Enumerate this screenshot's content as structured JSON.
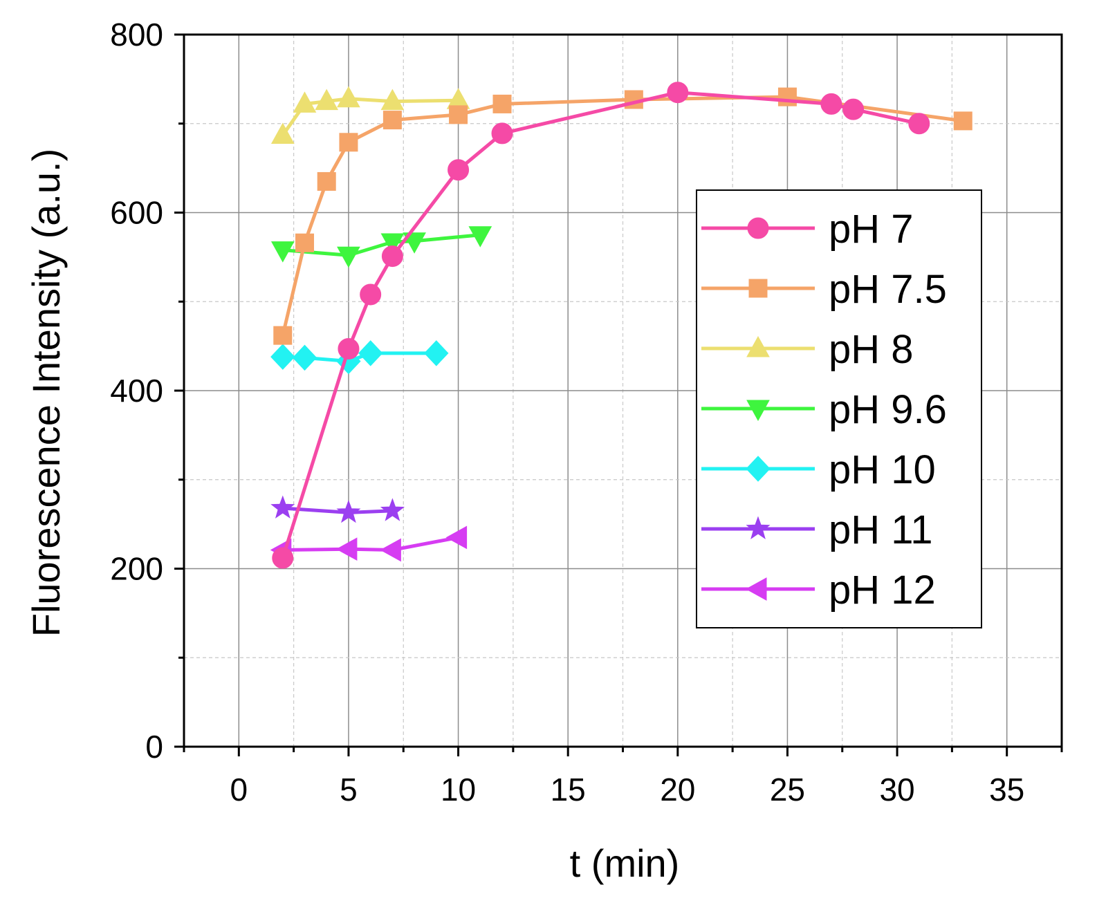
{
  "chart_data": {
    "type": "line",
    "title": "",
    "xlabel": "t (min)",
    "ylabel": "Fluorescence Intensity (a.u.)",
    "xlim": [
      -2.5,
      37.5
    ],
    "ylim": [
      0,
      800
    ],
    "xticks": [
      0,
      5,
      10,
      15,
      20,
      25,
      30,
      35
    ],
    "yticks": [
      0,
      200,
      400,
      600,
      800
    ],
    "xminor": [
      -2.5,
      2.5,
      7.5,
      12.5,
      17.5,
      22.5,
      27.5,
      32.5,
      37.5
    ],
    "yminor": [
      100,
      300,
      500,
      700
    ],
    "grid": true,
    "legend_position": "right",
    "series": [
      {
        "name": "pH 7",
        "color": "#f54aa6",
        "marker": "circle",
        "x": [
          2,
          5,
          6,
          7,
          10,
          12,
          20,
          27,
          28,
          31
        ],
        "y": [
          212,
          447,
          508,
          551,
          648,
          689,
          735,
          722,
          716,
          700
        ]
      },
      {
        "name": "pH 7.5",
        "color": "#f5a468",
        "marker": "square",
        "x": [
          2,
          3,
          4,
          5,
          7,
          10,
          12,
          18,
          25,
          33
        ],
        "y": [
          462,
          566,
          635,
          679,
          704,
          710,
          722,
          727,
          730,
          703
        ]
      },
      {
        "name": "pH 8",
        "color": "#ecdf70",
        "marker": "triangle-up",
        "x": [
          2,
          3,
          4,
          5,
          7,
          10
        ],
        "y": [
          687,
          722,
          725,
          728,
          725,
          726
        ]
      },
      {
        "name": "pH 9.6",
        "color": "#3ef53e",
        "marker": "triangle-down",
        "x": [
          2,
          5,
          7,
          8,
          11
        ],
        "y": [
          558,
          552,
          567,
          568,
          575
        ]
      },
      {
        "name": "pH 10",
        "color": "#22f2f2",
        "marker": "diamond",
        "x": [
          2,
          3,
          5,
          6,
          9
        ],
        "y": [
          438,
          437,
          433,
          442,
          442
        ]
      },
      {
        "name": "pH 11",
        "color": "#9b3ff0",
        "marker": "star",
        "x": [
          2,
          5,
          7
        ],
        "y": [
          268,
          263,
          265
        ]
      },
      {
        "name": "pH 12",
        "color": "#d63cf2",
        "marker": "triangle-left",
        "x": [
          2,
          5,
          7,
          10
        ],
        "y": [
          221,
          222,
          221,
          235
        ]
      }
    ]
  }
}
